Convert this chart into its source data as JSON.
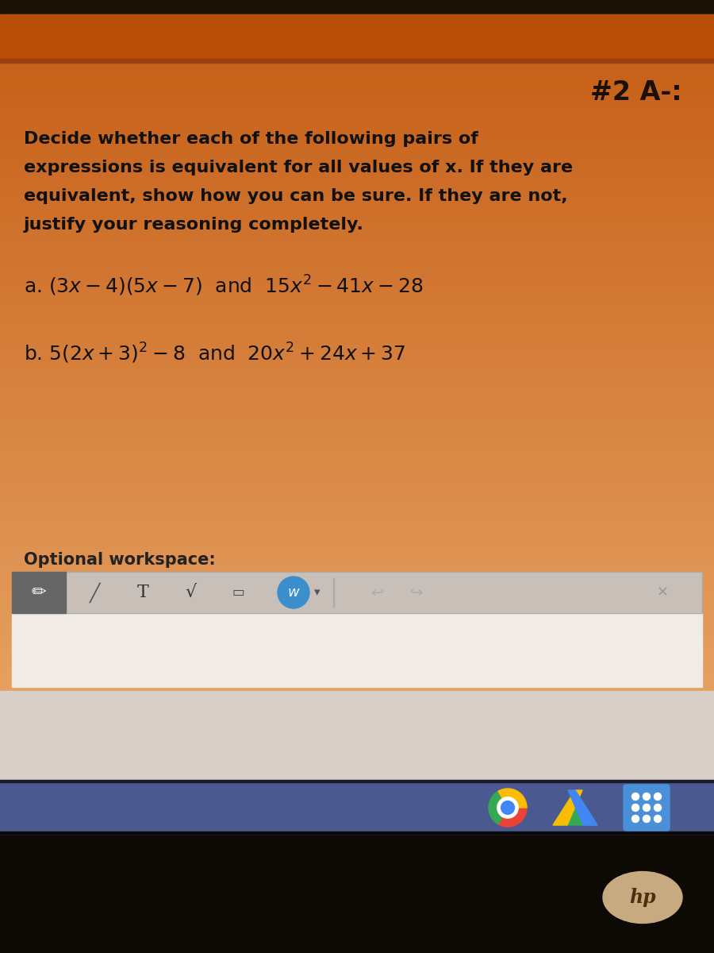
{
  "title": "#2 A-:",
  "bg_orange": "#c8560a",
  "bg_lighter_orange": "#d4672a",
  "bg_content": "#dbb898",
  "bg_taskbar": "#4a5a8a",
  "bg_dark": "#1a1205",
  "instruction_text_line1": "Decide whether each of the following pairs of",
  "instruction_text_line2": "expressions is equivalent for all values of x. If they are",
  "instruction_text_line3": "equivalent, show how you can be sure. If they are not,",
  "instruction_text_line4": "justify your reasoning completely.",
  "part_a_math": "a. $(3x - 4)(5x - 7)$  and  $15x^2 - 41x - 28$",
  "part_b_math": "b. $5(2x + 3)^2 - 8$  and  $20x^2 + 24x + 37$",
  "optional_label": "Optional workspace:",
  "math_fontsize": 18,
  "instr_fontsize": 16,
  "title_fontsize": 24
}
